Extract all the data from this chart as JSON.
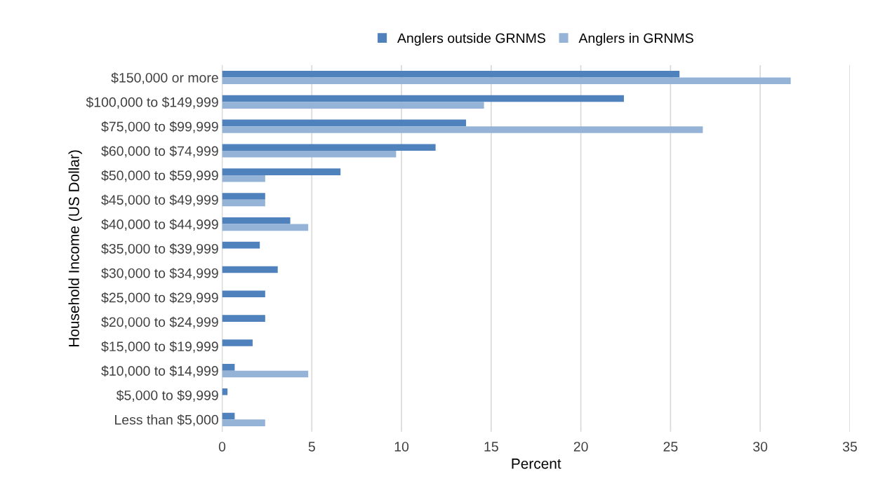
{
  "chart_data": {
    "type": "bar",
    "orientation": "horizontal",
    "xlabel": "Percent",
    "ylabel": "Household Income (US Dollar)",
    "categories": [
      "$150,000 or more",
      "$100,000 to $149,999",
      "$75,000 to $99,999",
      "$60,000 to $74,999",
      "$50,000 to $59,999",
      "$45,000 to $49,999",
      "$40,000 to $44,999",
      "$35,000 to $39,999",
      "$30,000 to $34,999",
      "$25,000 to $29,999",
      "$20,000 to $24,999",
      "$15,000 to $19,999",
      "$10,000 to $14,999",
      "$5,000 to $9,999",
      "Less than $5,000"
    ],
    "series": [
      {
        "name": "Anglers outside GRNMS",
        "color": "#4f81bd",
        "values": [
          25.5,
          22.4,
          13.6,
          11.9,
          6.6,
          2.4,
          3.8,
          2.1,
          3.1,
          2.4,
          2.4,
          1.7,
          0.7,
          0.3,
          0.7
        ]
      },
      {
        "name": "Anglers in GRNMS",
        "color": "#95b3d7",
        "values": [
          31.7,
          14.6,
          26.8,
          9.7,
          2.4,
          2.4,
          4.8,
          0,
          0,
          0,
          0,
          0,
          4.8,
          0,
          2.4
        ]
      }
    ],
    "xlim": [
      0,
      35
    ],
    "xticks": [
      0,
      5,
      10,
      15,
      20,
      25,
      30,
      35
    ],
    "grid": "x",
    "legend": "top"
  }
}
